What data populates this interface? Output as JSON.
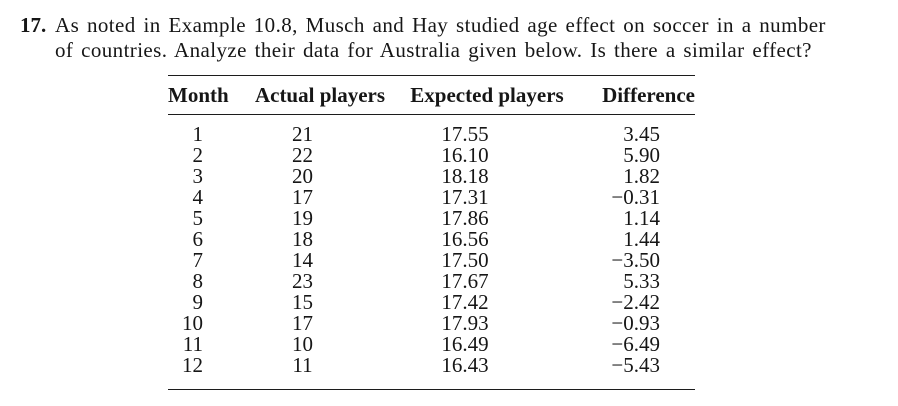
{
  "page": {
    "background_color": "#ffffff",
    "text_color": "#161616",
    "rule_color": "#1c1c1c"
  },
  "problem": {
    "number": "17.",
    "line1": "As noted in Example 10.8, Musch and Hay studied age effect on soccer in a number",
    "line2": "of countries. Analyze their data for Australia given below. Is there a similar effect?"
  },
  "table": {
    "headers": [
      "Month",
      "Actual players",
      "Expected players",
      "Difference"
    ],
    "rows": [
      [
        "1",
        "21",
        "17.55",
        "3.45"
      ],
      [
        "2",
        "22",
        "16.10",
        "5.90"
      ],
      [
        "3",
        "20",
        "18.18",
        "1.82"
      ],
      [
        "4",
        "17",
        "17.31",
        "−0.31"
      ],
      [
        "5",
        "19",
        "17.86",
        "1.14"
      ],
      [
        "6",
        "18",
        "16.56",
        "1.44"
      ],
      [
        "7",
        "14",
        "17.50",
        "−3.50"
      ],
      [
        "8",
        "23",
        "17.67",
        "5.33"
      ],
      [
        "9",
        "15",
        "17.42",
        "−2.42"
      ],
      [
        "10",
        "17",
        "17.93",
        "−0.93"
      ],
      [
        "11",
        "10",
        "16.49",
        "−6.49"
      ],
      [
        "12",
        "11",
        "16.43",
        "−5.43"
      ]
    ]
  }
}
